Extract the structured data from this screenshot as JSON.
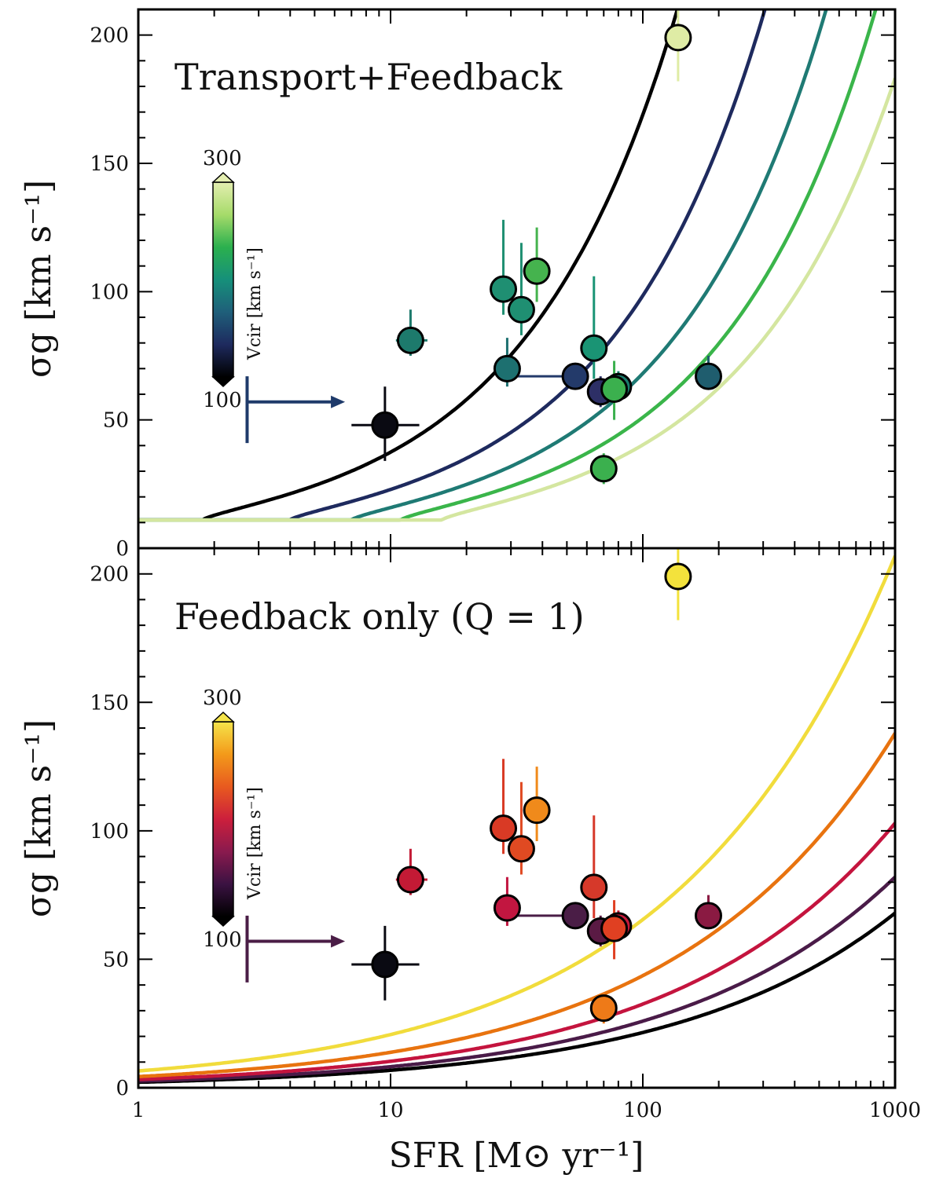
{
  "figure": {
    "xlabel": "SFR [M⊙ yr⁻¹]",
    "ylabel": "σg [km s⁻¹]",
    "x_tick_labels": [
      "1",
      "10",
      "100",
      "1000"
    ],
    "y_tick_labels": [
      "0",
      "50",
      "100",
      "150",
      "200"
    ]
  },
  "chart_data": [
    {
      "type": "scatter",
      "panel": "top",
      "title": "Transport+Feedback",
      "title_color": "#1d7a6c",
      "xscale": "log",
      "xlim": [
        1,
        1000
      ],
      "ylim": [
        0,
        210
      ],
      "xlabel": "SFR [M⊙ yr⁻¹]",
      "ylabel": "σg [km s⁻¹]",
      "colorbar": {
        "label": "Vcir [km s⁻¹]",
        "min_label": "100",
        "max_label": "300",
        "stops": [
          "#000000",
          "#1e2a5e",
          "#1f5f7a",
          "#16907a",
          "#2bb04e",
          "#a6db6a",
          "#e4eeb0"
        ]
      },
      "model_curves": [
        {
          "name": "Vcir=100",
          "color": "#000000",
          "floor": 11,
          "sfr_floor": 1.8
        },
        {
          "name": "Vcir=150",
          "color": "#1e2a5e",
          "floor": 11,
          "sfr_floor": 4.0
        },
        {
          "name": "Vcir=200",
          "color": "#1f7a74",
          "floor": 11,
          "sfr_floor": 7.0
        },
        {
          "name": "Vcir=250",
          "color": "#3ab54a",
          "floor": 11,
          "sfr_floor": 11.0
        },
        {
          "name": "Vcir=300",
          "color": "#d4e6a0",
          "floor": 11,
          "sfr_floor": 16.0
        }
      ],
      "points": [
        {
          "sfr": 9.5,
          "sigma": 48,
          "yerr": [
            14,
            15
          ],
          "xerr": [
            2.5,
            3.5
          ],
          "color": "#0a0a12",
          "errcolor": "#0a0a12"
        },
        {
          "sfr": 12,
          "sigma": 81,
          "yerr": [
            6,
            12
          ],
          "xerr": [
            1.5,
            2
          ],
          "color": "#1d7a6c",
          "errcolor": "#1d7a6c"
        },
        {
          "sfr": 28,
          "sigma": 101,
          "yerr": [
            10,
            27
          ],
          "color": "#1f8f72",
          "errcolor": "#1f8f72"
        },
        {
          "sfr": 33,
          "sigma": 93,
          "yerr": [
            10,
            26
          ],
          "color": "#1f8f72",
          "errcolor": "#1f8f72"
        },
        {
          "sfr": 38,
          "sigma": 108,
          "yerr": [
            12,
            17
          ],
          "color": "#45b34e",
          "errcolor": "#45b34e"
        },
        {
          "sfr": 29,
          "sigma": 70,
          "yerr": [
            7,
            12
          ],
          "color": "#1d7070",
          "errcolor": "#1d7070"
        },
        {
          "sfr": 54,
          "sigma": 67,
          "yerr": [
            0,
            0
          ],
          "xerr_left_to": 30,
          "color": "#233a6a",
          "errcolor": "#233a6a"
        },
        {
          "sfr": 68,
          "sigma": 61,
          "yerr": [
            6,
            6
          ],
          "color": "#2d2f66",
          "errcolor": "#2d2f66"
        },
        {
          "sfr": 80,
          "sigma": 63,
          "yerr": [
            6,
            6
          ],
          "color": "#1a7d6c",
          "errcolor": "#1a7d6c"
        },
        {
          "sfr": 64,
          "sigma": 78,
          "yerr": [
            12,
            28
          ],
          "color": "#1a9474",
          "errcolor": "#1a9474"
        },
        {
          "sfr": 77,
          "sigma": 62,
          "yerr": [
            12,
            11
          ],
          "color": "#3bb04e",
          "errcolor": "#3bb04e"
        },
        {
          "sfr": 70,
          "sigma": 31,
          "yerr": [
            6,
            6
          ],
          "color": "#3bb04e",
          "errcolor": "#3bb04e"
        },
        {
          "sfr": 182,
          "sigma": 67,
          "yerr": [
            5,
            8
          ],
          "color": "#1f5d6e",
          "errcolor": "#1f5d6e"
        },
        {
          "sfr": 138,
          "sigma": 199,
          "yerr": [
            17,
            12
          ],
          "color": "#dfeca5",
          "errcolor": "#dfeca5"
        }
      ],
      "limit_point": {
        "sfr": 2.7,
        "sigma": 57,
        "arrow_to": 6.6,
        "yerr": [
          16,
          10
        ],
        "color": "#1e3a6a"
      }
    },
    {
      "type": "scatter",
      "panel": "bottom",
      "title": "Feedback only (Q = 1)",
      "title_color": "#b51444",
      "xscale": "log",
      "xlim": [
        1,
        1000
      ],
      "ylim": [
        0,
        210
      ],
      "xlabel": "SFR [M⊙ yr⁻¹]",
      "ylabel": "σg [km s⁻¹]",
      "colorbar": {
        "label": "Vcir [km s⁻¹]",
        "min_label": "100",
        "max_label": "300",
        "stops": [
          "#000000",
          "#3b1242",
          "#8a1a4e",
          "#cc1f3c",
          "#e85a1f",
          "#f39a1a",
          "#f5e44a"
        ]
      },
      "model_curves": [
        {
          "name": "Vcir=100",
          "color": "#000000",
          "at1000": 68
        },
        {
          "name": "Vcir=150",
          "color": "#4a1b48",
          "at1000": 82
        },
        {
          "name": "Vcir=200",
          "color": "#c4143e",
          "at1000": 103
        },
        {
          "name": "Vcir=250",
          "color": "#e8730f",
          "at1000": 138
        },
        {
          "name": "Vcir=300",
          "color": "#f1dc3c",
          "at1000": 207
        }
      ],
      "points": [
        {
          "sfr": 9.5,
          "sigma": 48,
          "yerr": [
            14,
            15
          ],
          "xerr": [
            2.5,
            3.5
          ],
          "color": "#0a0a12",
          "errcolor": "#0a0a12"
        },
        {
          "sfr": 12,
          "sigma": 81,
          "yerr": [
            6,
            12
          ],
          "xerr": [
            1.5,
            2
          ],
          "color": "#c31a35",
          "errcolor": "#c31a35"
        },
        {
          "sfr": 28,
          "sigma": 101,
          "yerr": [
            10,
            27
          ],
          "color": "#d93a25",
          "errcolor": "#d93a25"
        },
        {
          "sfr": 33,
          "sigma": 93,
          "yerr": [
            10,
            26
          ],
          "color": "#e04a22",
          "errcolor": "#e04a22"
        },
        {
          "sfr": 38,
          "sigma": 108,
          "yerr": [
            12,
            17
          ],
          "color": "#f08a1b",
          "errcolor": "#f08a1b"
        },
        {
          "sfr": 29,
          "sigma": 70,
          "yerr": [
            7,
            12
          ],
          "color": "#c21640",
          "errcolor": "#c21640"
        },
        {
          "sfr": 54,
          "sigma": 67,
          "yerr": [
            0,
            0
          ],
          "xerr_left_to": 30,
          "color": "#4a1d46",
          "errcolor": "#4a1d46"
        },
        {
          "sfr": 68,
          "sigma": 61,
          "yerr": [
            6,
            6
          ],
          "color": "#5a1a44",
          "errcolor": "#5a1a44"
        },
        {
          "sfr": 80,
          "sigma": 63,
          "yerr": [
            6,
            6
          ],
          "color": "#c71a3a",
          "errcolor": "#c71a3a"
        },
        {
          "sfr": 64,
          "sigma": 78,
          "yerr": [
            12,
            28
          ],
          "color": "#d6392a",
          "errcolor": "#d6392a"
        },
        {
          "sfr": 77,
          "sigma": 62,
          "yerr": [
            12,
            11
          ],
          "color": "#e04022",
          "errcolor": "#e04022"
        },
        {
          "sfr": 70,
          "sigma": 31,
          "yerr": [
            6,
            6
          ],
          "color": "#ee7a18",
          "errcolor": "#ee7a18"
        },
        {
          "sfr": 182,
          "sigma": 67,
          "yerr": [
            5,
            8
          ],
          "color": "#8a1a42",
          "errcolor": "#8a1a42"
        },
        {
          "sfr": 138,
          "sigma": 199,
          "yerr": [
            17,
            12
          ],
          "color": "#f3e23c",
          "errcolor": "#f3e23c"
        }
      ],
      "limit_point": {
        "sfr": 2.7,
        "sigma": 57,
        "arrow_to": 6.6,
        "yerr": [
          16,
          10
        ],
        "color": "#4a1d46"
      }
    }
  ]
}
